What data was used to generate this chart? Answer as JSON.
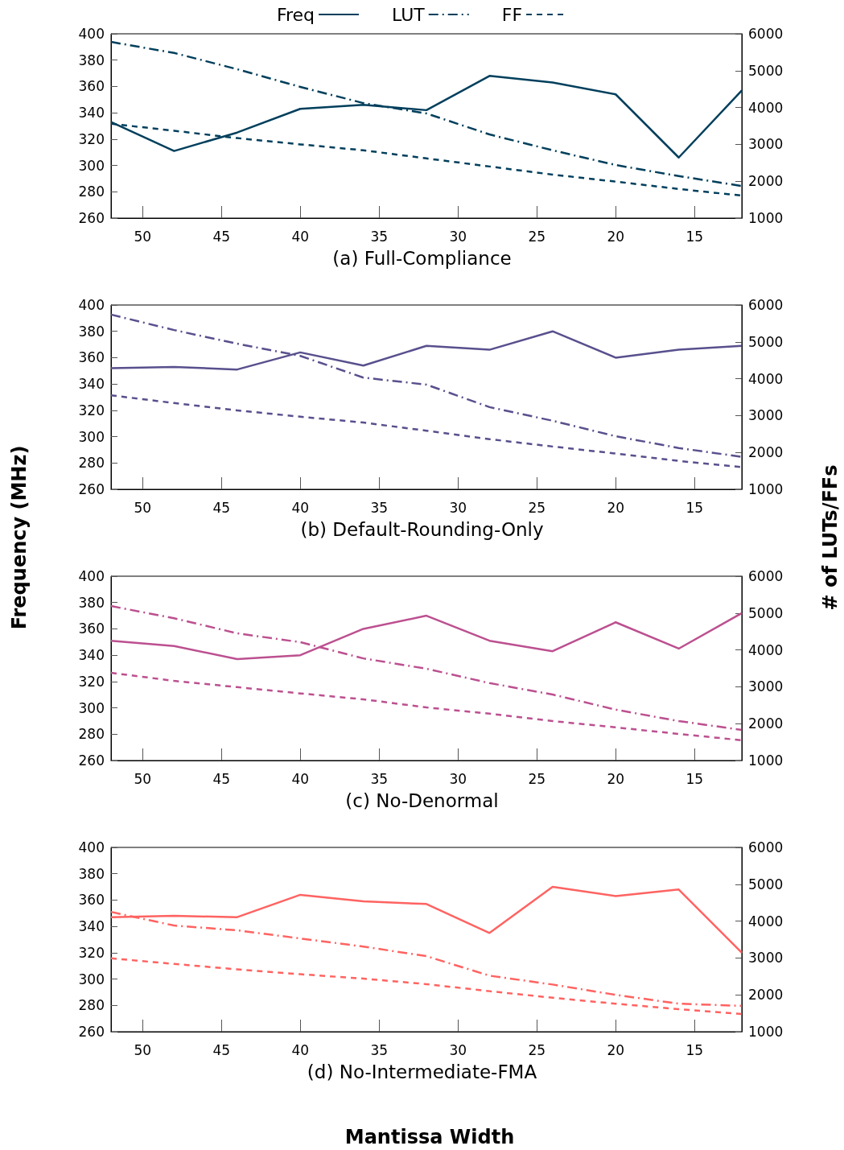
{
  "chart_data": [
    {
      "type": "line",
      "title": "(a) Full-Compliance",
      "legend": "top",
      "marker": "none",
      "grid": false,
      "x": [
        52,
        48,
        44,
        40,
        36,
        32,
        28,
        24,
        20,
        16,
        12
      ],
      "xlim": [
        52,
        12
      ],
      "xticks": [
        50,
        45,
        40,
        35,
        30,
        25,
        20,
        15
      ],
      "ylim": [
        260,
        400
      ],
      "yticks": [
        260,
        280,
        300,
        320,
        340,
        360,
        380,
        400
      ],
      "y2lim": [
        1000,
        6000
      ],
      "y2ticks": [
        1000,
        2000,
        3000,
        4000,
        5000,
        6000
      ],
      "series": [
        {
          "name": "Freq",
          "color": "#003f5c",
          "line_style": "solid",
          "values": [
            333,
            311,
            325,
            343,
            346,
            342,
            368,
            363,
            354,
            306,
            357
          ]
        },
        {
          "name": "LUT",
          "color": "#003f5c",
          "line_style": "dashdot",
          "axis": "y2",
          "values": [
            5780,
            5480,
            5040,
            4560,
            4120,
            3840,
            3270,
            2840,
            2440,
            2140,
            1870
          ]
        },
        {
          "name": "FF",
          "color": "#003f5c",
          "line_style": "dashed",
          "axis": "y2",
          "values": [
            3560,
            3370,
            3170,
            3000,
            2840,
            2620,
            2400,
            2180,
            1990,
            1790,
            1610
          ]
        }
      ]
    },
    {
      "type": "line",
      "title": "(b) Default-Rounding-Only",
      "ylabel": "Frequency (MHz)",
      "y2label": "# of LUTs/FFs",
      "marker": "none",
      "grid": false,
      "x": [
        52,
        48,
        44,
        40,
        36,
        32,
        28,
        24,
        20,
        16,
        12
      ],
      "xlim": [
        52,
        12
      ],
      "xticks": [
        50,
        45,
        40,
        35,
        30,
        25,
        20,
        15
      ],
      "ylim": [
        260,
        400
      ],
      "yticks": [
        260,
        280,
        300,
        320,
        340,
        360,
        380,
        400
      ],
      "y2lim": [
        1000,
        6000
      ],
      "y2ticks": [
        1000,
        2000,
        3000,
        4000,
        5000,
        6000
      ],
      "series": [
        {
          "color": "#58508d",
          "line_style": "solid",
          "values": [
            352,
            353,
            351,
            364,
            354,
            369,
            366,
            380,
            360,
            366,
            369
          ]
        },
        {
          "color": "#58508d",
          "line_style": "dashdot",
          "axis": "y2",
          "values": [
            5740,
            5320,
            4950,
            4620,
            4030,
            3840,
            3230,
            2860,
            2440,
            2120,
            1880
          ]
        },
        {
          "color": "#58508d",
          "line_style": "dashed",
          "axis": "y2",
          "values": [
            3550,
            3340,
            3140,
            2970,
            2810,
            2590,
            2360,
            2160,
            1970,
            1770,
            1600
          ]
        }
      ]
    },
    {
      "type": "line",
      "title": "(c) No-Denormal",
      "marker": "none",
      "grid": false,
      "x": [
        52,
        48,
        44,
        40,
        36,
        32,
        28,
        24,
        20,
        16,
        12
      ],
      "xlim": [
        52,
        12
      ],
      "xticks": [
        50,
        45,
        40,
        35,
        30,
        25,
        20,
        15
      ],
      "ylim": [
        260,
        400
      ],
      "yticks": [
        260,
        280,
        300,
        320,
        340,
        360,
        380,
        400
      ],
      "y2lim": [
        1000,
        6000
      ],
      "y2ticks": [
        1000,
        2000,
        3000,
        4000,
        5000,
        6000
      ],
      "series": [
        {
          "color": "#bc5090",
          "line_style": "solid",
          "values": [
            351,
            347,
            337,
            340,
            360,
            370,
            351,
            343,
            365,
            345,
            372
          ]
        },
        {
          "color": "#bc5090",
          "line_style": "dashdot",
          "axis": "y2",
          "values": [
            5190,
            4860,
            4450,
            4210,
            3770,
            3490,
            3100,
            2790,
            2380,
            2070,
            1830
          ]
        },
        {
          "color": "#bc5090",
          "line_style": "dashed",
          "axis": "y2",
          "values": [
            3380,
            3160,
            2990,
            2820,
            2660,
            2440,
            2270,
            2070,
            1900,
            1720,
            1550
          ]
        }
      ]
    },
    {
      "type": "line",
      "title": "(d) No-Intermediate-FMA",
      "xlabel": "Mantissa Width",
      "marker": "none",
      "grid": false,
      "x": [
        52,
        48,
        44,
        40,
        36,
        32,
        28,
        24,
        20,
        16,
        12
      ],
      "xlim": [
        52,
        12
      ],
      "xticks": [
        50,
        45,
        40,
        35,
        30,
        25,
        20,
        15
      ],
      "ylim": [
        260,
        400
      ],
      "yticks": [
        260,
        280,
        300,
        320,
        340,
        360,
        380,
        400
      ],
      "y2lim": [
        1000,
        6000
      ],
      "y2ticks": [
        1000,
        2000,
        3000,
        4000,
        5000,
        6000
      ],
      "series": [
        {
          "color": "#ff6361",
          "line_style": "solid",
          "values": [
            347,
            348,
            347,
            364,
            359,
            357,
            335,
            370,
            363,
            368,
            320
          ]
        },
        {
          "color": "#ff6361",
          "line_style": "dashdot",
          "axis": "y2",
          "values": [
            4250,
            3880,
            3750,
            3530,
            3310,
            3050,
            2520,
            2280,
            2000,
            1760,
            1700
          ]
        },
        {
          "color": "#ff6361",
          "line_style": "dashed",
          "axis": "y2",
          "values": [
            2990,
            2840,
            2690,
            2560,
            2440,
            2290,
            2100,
            1920,
            1760,
            1610,
            1480
          ]
        }
      ]
    }
  ]
}
